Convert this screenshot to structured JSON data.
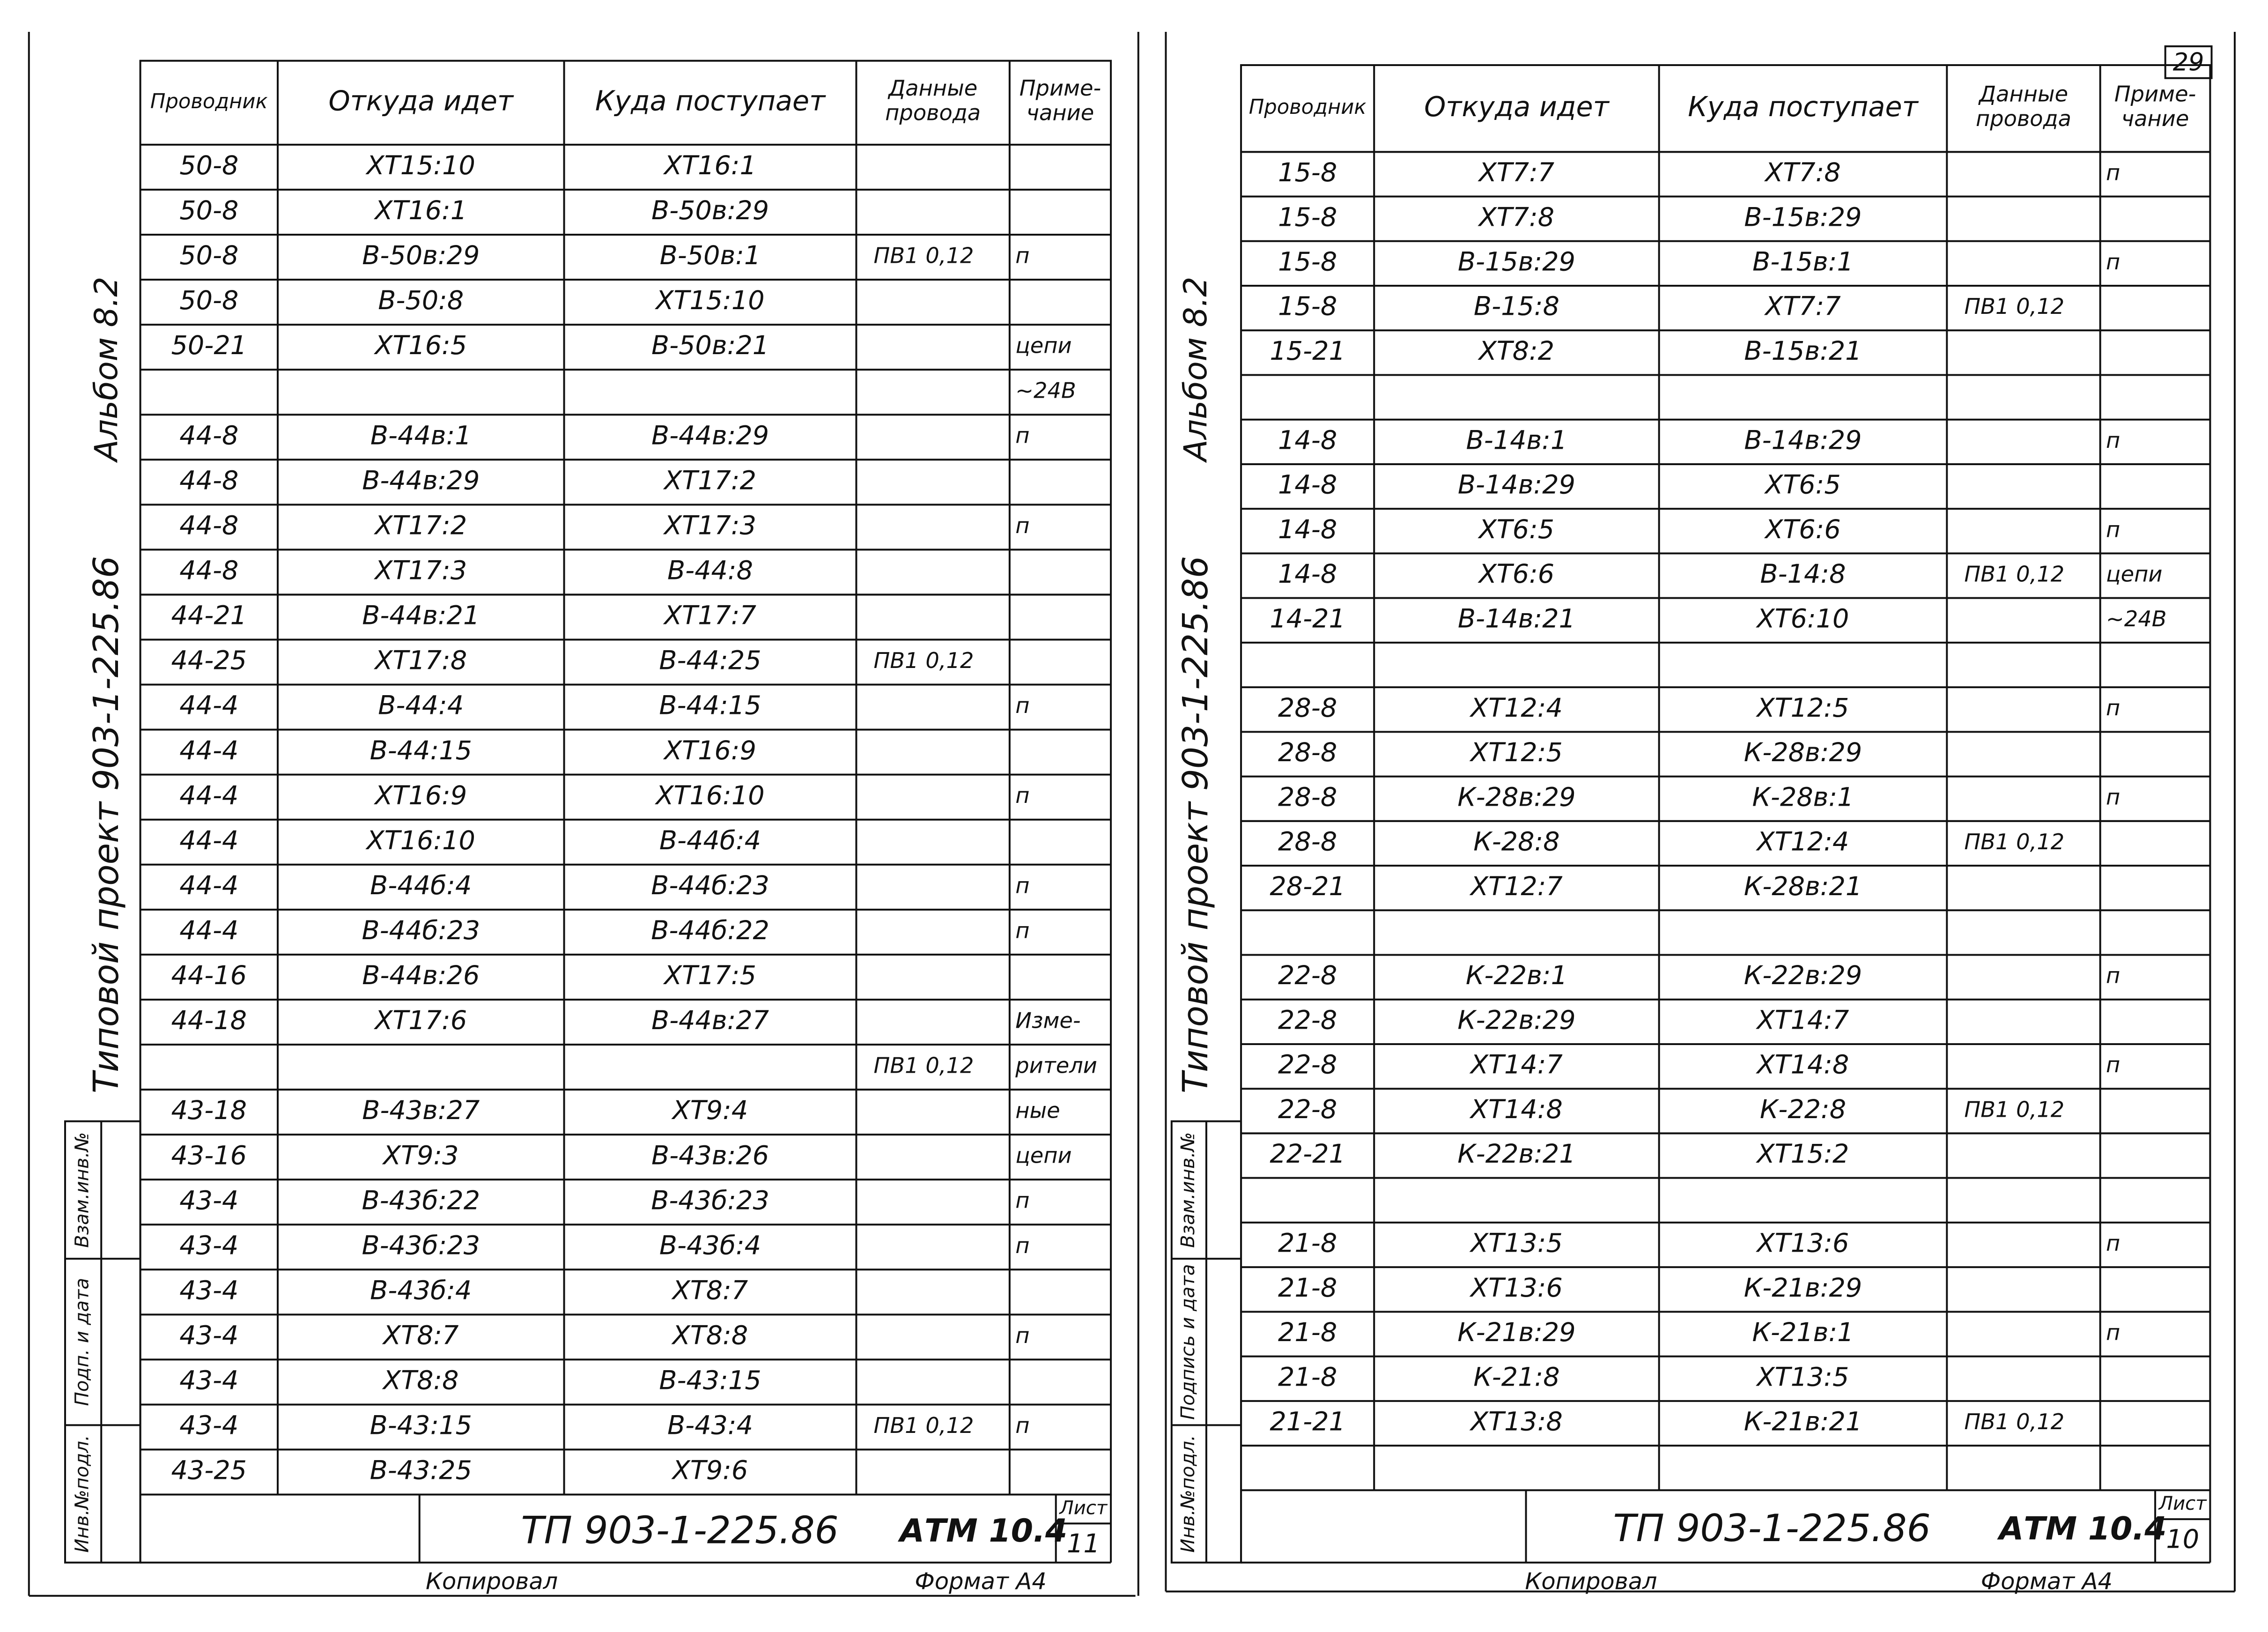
{
  "left_sheet": {
    "side_title": "Альбом 8.2",
    "project": "Типовой проект 903-1-225.86",
    "stamps": [
      "Взам.инв.№",
      "Подп. и дата",
      "Инв.№подл."
    ],
    "table": {
      "headers": [
        "Проводник",
        "Откуда идет",
        "Куда поступает",
        [
          "Данные",
          "провода"
        ],
        [
          "Приме-",
          "чание"
        ]
      ],
      "rows": [
        [
          "50-8",
          "ХТ15:10",
          "ХТ16:1",
          null,
          null
        ],
        [
          "50-8",
          "ХТ16:1",
          "В-50в:29",
          null,
          null
        ],
        [
          "50-8",
          "В-50в:29",
          "В-50в:1",
          "ПВ1 0,12",
          "п"
        ],
        [
          "50-8",
          "В-50:8",
          "ХТ15:10",
          null,
          null
        ],
        [
          "50-21",
          "ХТ16:5",
          "В-50в:21",
          null,
          "цепи"
        ],
        [
          null,
          null,
          null,
          null,
          "~24В"
        ],
        [
          "44-8",
          "В-44в:1",
          "В-44в:29",
          null,
          "п"
        ],
        [
          "44-8",
          "В-44в:29",
          "ХТ17:2",
          null,
          null
        ],
        [
          "44-8",
          "ХТ17:2",
          "ХТ17:3",
          null,
          "п"
        ],
        [
          "44-8",
          "ХТ17:3",
          "В-44:8",
          null,
          null
        ],
        [
          "44-21",
          "В-44в:21",
          "ХТ17:7",
          null,
          null
        ],
        [
          "44-25",
          "ХТ17:8",
          "В-44:25",
          "ПВ1 0,12",
          null
        ],
        [
          "44-4",
          "В-44:4",
          "В-44:15",
          null,
          "п"
        ],
        [
          "44-4",
          "В-44:15",
          "ХТ16:9",
          null,
          null
        ],
        [
          "44-4",
          "ХТ16:9",
          "ХТ16:10",
          null,
          "п"
        ],
        [
          "44-4",
          "ХТ16:10",
          "В-44б:4",
          null,
          null
        ],
        [
          "44-4",
          "В-44б:4",
          "В-44б:23",
          null,
          "п"
        ],
        [
          "44-4",
          "В-44б:23",
          "В-44б:22",
          null,
          "п"
        ],
        [
          "44-16",
          "В-44в:26",
          "ХТ17:5",
          null,
          null
        ],
        [
          "44-18",
          "ХТ17:6",
          "В-44в:27",
          null,
          "Изме-"
        ],
        [
          null,
          null,
          null,
          "ПВ1 0,12",
          "рители"
        ],
        [
          "43-18",
          "В-43в:27",
          "ХТ9:4",
          null,
          "ные"
        ],
        [
          "43-16",
          "ХТ9:3",
          "В-43в:26",
          null,
          "цепи"
        ],
        [
          "43-4",
          "В-43б:22",
          "В-43б:23",
          null,
          "п"
        ],
        [
          "43-4",
          "В-43б:23",
          "В-43б:4",
          null,
          "п"
        ],
        [
          "43-4",
          "В-43б:4",
          "ХТ8:7",
          null,
          null
        ],
        [
          "43-4",
          "ХТ8:7",
          "ХТ8:8",
          null,
          "п"
        ],
        [
          "43-4",
          "ХТ8:8",
          "В-43:15",
          null,
          null
        ],
        [
          "43-4",
          "В-43:15",
          "В-43:4",
          "ПВ1 0,12",
          "п"
        ],
        [
          "43-25",
          "В-43:25",
          "ХТ9:6",
          null,
          null
        ]
      ]
    },
    "title_block": {
      "code": "ТП 903-1-225.86",
      "doc": "АТМ 10.4",
      "sheet_label": "Лист",
      "sheet": "11"
    },
    "footer": {
      "copied": "Копировал",
      "format": "Формат А4"
    }
  },
  "right_sheet": {
    "page_number": "29",
    "side_title": "Альбом 8.2",
    "project": "Типовой проект 903-1-225.86",
    "stamps": [
      "Взам.инв.№",
      "Подпись и дата",
      "Инв.№подл."
    ],
    "table": {
      "headers": [
        "Проводник",
        "Откуда идет",
        "Куда поступает",
        [
          "Данные",
          "провода"
        ],
        [
          "Приме-",
          "чание"
        ]
      ],
      "rows": [
        [
          "15-8",
          "ХТ7:7",
          "ХТ7:8",
          null,
          "п"
        ],
        [
          "15-8",
          "ХТ7:8",
          "В-15в:29",
          null,
          null
        ],
        [
          "15-8",
          "В-15в:29",
          "В-15в:1",
          null,
          "п"
        ],
        [
          "15-8",
          "В-15:8",
          "ХТ7:7",
          "ПВ1 0,12",
          null
        ],
        [
          "15-21",
          "ХТ8:2",
          "В-15в:21",
          null,
          null
        ],
        [
          null,
          null,
          null,
          null,
          null
        ],
        [
          "14-8",
          "В-14в:1",
          "В-14в:29",
          null,
          "п"
        ],
        [
          "14-8",
          "В-14в:29",
          "ХТ6:5",
          null,
          null
        ],
        [
          "14-8",
          "ХТ6:5",
          "ХТ6:6",
          null,
          "п"
        ],
        [
          "14-8",
          "ХТ6:6",
          "В-14:8",
          "ПВ1 0,12",
          "цепи"
        ],
        [
          "14-21",
          "В-14в:21",
          "ХТ6:10",
          null,
          "~24В"
        ],
        [
          null,
          null,
          null,
          null,
          null
        ],
        [
          "28-8",
          "ХТ12:4",
          "ХТ12:5",
          null,
          "п"
        ],
        [
          "28-8",
          "ХТ12:5",
          "К-28в:29",
          null,
          null
        ],
        [
          "28-8",
          "К-28в:29",
          "К-28в:1",
          null,
          "п"
        ],
        [
          "28-8",
          "К-28:8",
          "ХТ12:4",
          "ПВ1 0,12",
          null
        ],
        [
          "28-21",
          "ХТ12:7",
          "К-28в:21",
          null,
          null
        ],
        [
          null,
          null,
          null,
          null,
          null
        ],
        [
          "22-8",
          "К-22в:1",
          "К-22в:29",
          null,
          "п"
        ],
        [
          "22-8",
          "К-22в:29",
          "ХТ14:7",
          null,
          null
        ],
        [
          "22-8",
          "ХТ14:7",
          "ХТ14:8",
          null,
          "п"
        ],
        [
          "22-8",
          "ХТ14:8",
          "К-22:8",
          "ПВ1 0,12",
          null
        ],
        [
          "22-21",
          "К-22в:21",
          "ХТ15:2",
          null,
          null
        ],
        [
          null,
          null,
          null,
          null,
          null
        ],
        [
          "21-8",
          "ХТ13:5",
          "ХТ13:6",
          null,
          "п"
        ],
        [
          "21-8",
          "ХТ13:6",
          "К-21в:29",
          null,
          null
        ],
        [
          "21-8",
          "К-21в:29",
          "К-21в:1",
          null,
          "п"
        ],
        [
          "21-8",
          "К-21:8",
          "ХТ13:5",
          null,
          null
        ],
        [
          "21-21",
          "ХТ13:8",
          "К-21в:21",
          "ПВ1 0,12",
          null
        ],
        [
          null,
          null,
          null,
          null,
          null
        ]
      ]
    },
    "title_block": {
      "code": "ТП 903-1-225.86",
      "doc": "АТМ 10.4",
      "sheet_label": "Лист",
      "sheet": "10"
    },
    "footer": {
      "copied": "Копировал",
      "format": "Формат А4"
    }
  }
}
